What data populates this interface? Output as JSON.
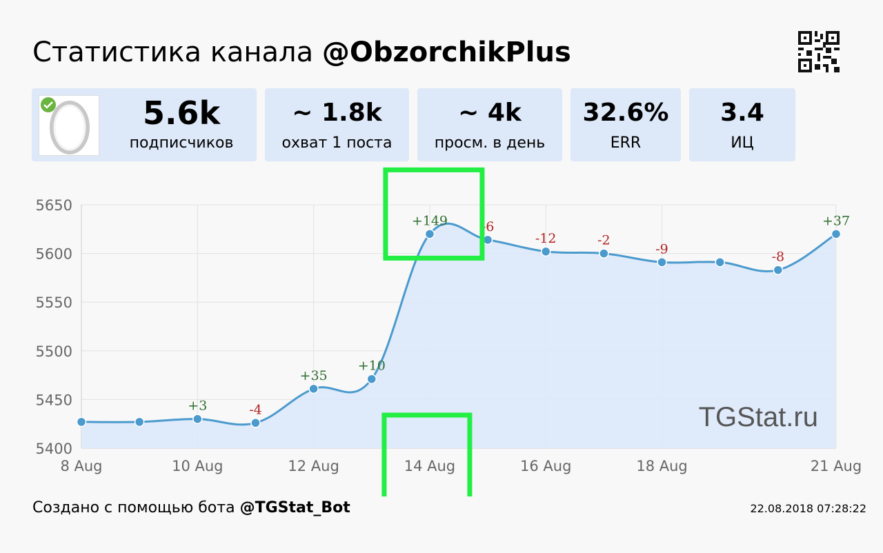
{
  "header": {
    "title_prefix": "Статистика канала",
    "channel": "@ObzorchikPlus"
  },
  "stats": [
    {
      "value": "5.6k",
      "label": "подписчиков"
    },
    {
      "value": "~ 1.8k",
      "label": "охват 1 поста"
    },
    {
      "value": "~ 4k",
      "label": "просм. в день"
    },
    {
      "value": "32.6%",
      "label": "ERR"
    },
    {
      "value": "3.4",
      "label": "ИЦ"
    }
  ],
  "watermark": "TGStat.ru",
  "footer": {
    "prefix": "Создано с помощью бота",
    "bot": "@TGStat_Bot",
    "timestamp": "22.08.2018 07:28:22"
  },
  "colors": {
    "line": "#4a9acd",
    "fill": "#dce8f9",
    "positive": "#2e6e2e",
    "negative": "#b22222",
    "highlight": "#22ee44",
    "card": "#dde8f8"
  },
  "chart_data": {
    "type": "area",
    "x": [
      "8 Aug",
      "9 Aug",
      "10 Aug",
      "11 Aug",
      "12 Aug",
      "13 Aug",
      "14 Aug",
      "15 Aug",
      "16 Aug",
      "17 Aug",
      "18 Aug",
      "19 Aug",
      "20 Aug",
      "21 Aug"
    ],
    "values": [
      5427,
      5427,
      5430,
      5426,
      5461,
      5471,
      5620,
      5614,
      5602,
      5600,
      5591,
      5591,
      5583,
      5620
    ],
    "deltas": [
      "",
      "",
      "+3",
      "-4",
      "+35",
      "+10",
      "+149",
      "-6",
      "-12",
      "-2",
      "-9",
      "",
      "-8",
      "+37"
    ],
    "xticks": [
      "8 Aug",
      "10 Aug",
      "12 Aug",
      "14 Aug",
      "16 Aug",
      "18 Aug",
      "21 Aug"
    ],
    "yticks": [
      5400,
      5450,
      5500,
      5550,
      5600,
      5650
    ],
    "ylim": [
      5400,
      5650
    ],
    "grid": true,
    "highlighted": [
      "14 Aug"
    ]
  }
}
